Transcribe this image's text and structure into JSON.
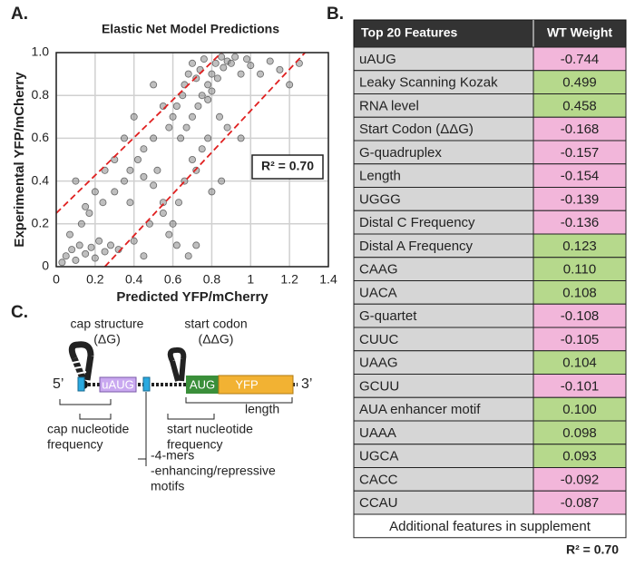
{
  "chart_data": {
    "type": "scatter",
    "panel_label": "A.",
    "title": "Elastic Net Model Predictions",
    "xlabel": "Predicted YFP/mCherry",
    "ylabel": "Experimental YFP/mCherry",
    "xlim": [
      0,
      1.4
    ],
    "xticks": [
      0,
      0.2,
      0.4,
      0.6,
      0.8,
      1.0,
      1.2,
      1.4
    ],
    "ylim": [
      0,
      1.0
    ],
    "yticks": [
      0,
      0.2,
      0.4,
      0.6,
      0.8,
      {
        "value": 1.0,
        "label": "1.0"
      }
    ],
    "grid": true,
    "color": "#8a8a8a",
    "annotation": "R² = 0.70",
    "x": [
      0.05,
      0.08,
      0.1,
      0.12,
      0.15,
      0.18,
      0.2,
      0.22,
      0.25,
      0.28,
      0.03,
      0.07,
      0.13,
      0.17,
      0.24,
      0.3,
      0.32,
      0.35,
      0.38,
      0.4,
      0.42,
      0.45,
      0.48,
      0.5,
      0.52,
      0.55,
      0.58,
      0.6,
      0.62,
      0.65,
      0.66,
      0.68,
      0.7,
      0.72,
      0.74,
      0.76,
      0.78,
      0.8,
      0.82,
      0.85,
      0.64,
      0.67,
      0.7,
      0.73,
      0.75,
      0.78,
      0.8,
      0.83,
      0.86,
      0.88,
      0.9,
      0.92,
      0.95,
      0.98,
      1.0,
      1.05,
      1.1,
      1.15,
      1.2,
      1.25,
      0.6,
      0.63,
      0.66,
      0.7,
      0.72,
      0.75,
      0.78,
      0.8,
      0.84,
      0.88,
      0.3,
      0.35,
      0.4,
      0.45,
      0.5,
      0.55,
      0.58,
      0.62,
      0.45,
      0.38,
      0.2,
      0.25,
      0.15,
      0.1,
      0.5,
      0.55,
      0.68,
      0.72,
      0.85,
      0.95
    ],
    "values": [
      0.05,
      0.08,
      0.03,
      0.1,
      0.06,
      0.09,
      0.04,
      0.12,
      0.07,
      0.1,
      0.02,
      0.15,
      0.2,
      0.25,
      0.3,
      0.35,
      0.08,
      0.4,
      0.45,
      0.12,
      0.5,
      0.55,
      0.2,
      0.6,
      0.45,
      0.3,
      0.65,
      0.7,
      0.75,
      0.8,
      0.85,
      0.9,
      0.95,
      0.88,
      0.92,
      0.97,
      0.85,
      0.9,
      0.95,
      0.98,
      0.6,
      0.65,
      0.7,
      0.75,
      0.8,
      0.78,
      0.82,
      0.88,
      0.93,
      0.96,
      0.95,
      0.98,
      0.9,
      0.97,
      0.94,
      0.9,
      0.96,
      0.92,
      0.85,
      0.95,
      0.2,
      0.3,
      0.4,
      0.5,
      0.45,
      0.55,
      0.6,
      0.35,
      0.7,
      0.65,
      0.5,
      0.6,
      0.7,
      0.42,
      0.38,
      0.25,
      0.15,
      0.1,
      0.05,
      0.3,
      0.35,
      0.45,
      0.28,
      0.4,
      0.85,
      0.75,
      0.05,
      0.1,
      0.4,
      0.6
    ],
    "reference_lines": {
      "color": "#e02020",
      "lines": [
        {
          "x": [
            0,
            0.85
          ],
          "y": [
            0.25,
            1.0
          ]
        },
        {
          "x": [
            0.25,
            1.28
          ],
          "y": [
            0,
            1.0
          ]
        }
      ]
    }
  },
  "table": {
    "panel_label": "B.",
    "header": [
      "Top 20 Features",
      "WT Weight"
    ],
    "negative_color": "#f2b6da",
    "positive_color": "#b6d98c",
    "rows": [
      [
        "uAUG",
        "-0.744"
      ],
      [
        "Leaky Scanning Kozak",
        "0.499"
      ],
      [
        "RNA level",
        "0.458"
      ],
      [
        "Start Codon (ΔΔG)",
        "-0.168"
      ],
      [
        "G-quadruplex",
        "-0.157"
      ],
      [
        "Length",
        "-0.154"
      ],
      [
        "UGGG",
        "-0.139"
      ],
      [
        "Distal C Frequency",
        "-0.136"
      ],
      [
        "Distal A Frequency",
        "0.123"
      ],
      [
        "CAAG",
        "0.110"
      ],
      [
        "UACA",
        "0.108"
      ],
      [
        "G-quartet",
        "-0.108"
      ],
      [
        "CUUC",
        "-0.105"
      ],
      [
        "UAAG",
        "0.104"
      ],
      [
        "GCUU",
        "-0.101"
      ],
      [
        "AUA enhancer motif",
        "0.100"
      ],
      [
        "UAAA",
        "0.098"
      ],
      [
        "UGCA",
        "0.093"
      ],
      [
        "CACC",
        "-0.092"
      ],
      [
        "CCAU",
        "-0.087"
      ]
    ],
    "footer": "Additional features in supplement",
    "r2": "R² = 0.70"
  },
  "diagram": {
    "panel_label": "C.",
    "cap_structure": [
      "cap structure",
      "(ΔG)"
    ],
    "start_codon": [
      "start codon",
      "(ΔΔG)"
    ],
    "five_prime": "5’",
    "three_prime": "3’",
    "uaug": "uAUG",
    "aug": "AUG",
    "yfp": "YFP",
    "length": "length",
    "cap_frequency": [
      "cap nucleotide",
      "frequency"
    ],
    "start_frequency": [
      "start nucleotide",
      "frequency"
    ],
    "motifs": [
      "-4-mers",
      "-enhancing/repressive",
      "motifs"
    ]
  }
}
